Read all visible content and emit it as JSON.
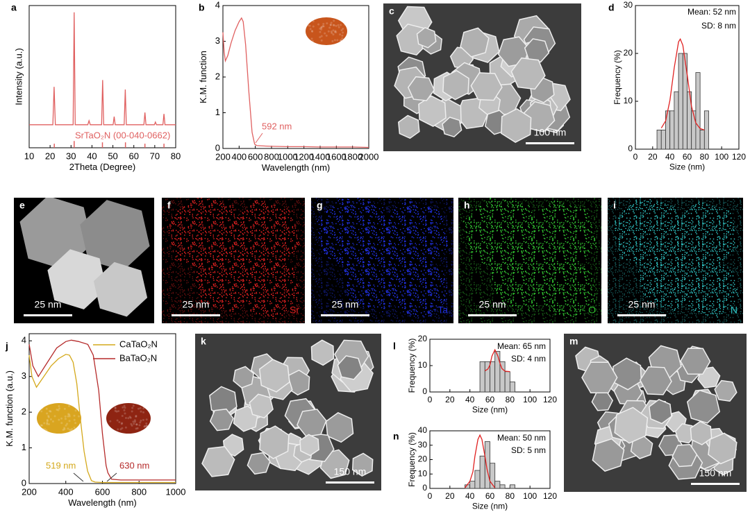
{
  "chart_data": [
    {
      "type": "line",
      "label": "a",
      "xlabel": "2Theta (Degree)",
      "ylabel": "Intensity (a.u.)",
      "xlim": [
        10,
        80
      ],
      "xticks": [
        10,
        20,
        30,
        40,
        50,
        60,
        70,
        80
      ],
      "ylim": [
        0,
        1.05
      ],
      "annotations": [
        "SrTaO₂N (00-040-0662)"
      ],
      "series": [
        {
          "color": "#e06060",
          "x": [
            10,
            21.3,
            21.9,
            22.5,
            31,
            31.5,
            32,
            38,
            38.6,
            39.2,
            44.6,
            45.1,
            45.6,
            50.1,
            50.6,
            51.1,
            55.4,
            55.9,
            56.4,
            64.8,
            65.3,
            65.8,
            69.8,
            70.3,
            70.8,
            73.9,
            74.4,
            74.9,
            80
          ],
          "values": [
            0.17,
            0.17,
            0.45,
            0.17,
            0.17,
            1.0,
            0.17,
            0.17,
            0.2,
            0.17,
            0.17,
            0.5,
            0.17,
            0.17,
            0.23,
            0.17,
            0.17,
            0.43,
            0.17,
            0.17,
            0.26,
            0.17,
            0.17,
            0.19,
            0.17,
            0.17,
            0.25,
            0.17,
            0.17
          ]
        },
        {
          "color": "#e06060",
          "kind": "sticks",
          "x": [
            22,
            31.5,
            45,
            56,
            65.3,
            74.4
          ],
          "values": [
            0.03,
            0.05,
            0.04,
            0.04,
            0.03,
            0.03
          ]
        }
      ]
    },
    {
      "type": "line",
      "label": "b",
      "xlabel": "Wavelength (nm)",
      "ylabel": "K.M. function",
      "xlim": [
        200,
        2000
      ],
      "xticks": [
        200,
        400,
        600,
        800,
        1000,
        1200,
        1400,
        1600,
        1800,
        2000
      ],
      "ylim": [
        0,
        4
      ],
      "yticks": [
        0,
        1,
        2,
        3,
        4
      ],
      "annotations": [
        "592 nm"
      ],
      "series": [
        {
          "color": "#e06060",
          "x": [
            200,
            215,
            230,
            260,
            300,
            350,
            400,
            430,
            450,
            480,
            520,
            560,
            592,
            620,
            700,
            800,
            1000,
            1200,
            1400,
            1600,
            1800,
            2000
          ],
          "values": [
            3.25,
            2.7,
            2.45,
            2.6,
            2.95,
            3.3,
            3.55,
            3.65,
            3.55,
            2.9,
            1.6,
            0.45,
            0.12,
            0.08,
            0.07,
            0.06,
            0.05,
            0.05,
            0.04,
            0.04,
            0.04,
            0.03
          ]
        }
      ]
    },
    {
      "type": "histogram",
      "label": "d",
      "xlabel": "Size (nm)",
      "ylabel": "Frequency (%)",
      "xlim": [
        0,
        120
      ],
      "xticks": [
        0,
        20,
        40,
        60,
        80,
        100,
        120
      ],
      "ylim": [
        0,
        30
      ],
      "yticks": [
        0,
        10,
        20,
        30
      ],
      "annotations": [
        "Mean: 52 nm",
        "SD: 8 nm"
      ],
      "bins": [
        25,
        30,
        35,
        40,
        45,
        50,
        55,
        60,
        65,
        70,
        75,
        80,
        85
      ],
      "values": [
        4,
        4,
        8,
        8,
        12,
        20,
        20,
        12,
        8,
        16,
        4,
        8
      ],
      "color": "#c8c8c8",
      "fit": {
        "color": "#e02020",
        "x": [
          30,
          35,
          40,
          45,
          50,
          52,
          55,
          60,
          65,
          70,
          75,
          80
        ],
        "values": [
          4.4,
          5.9,
          10.2,
          17,
          22.4,
          23,
          21.7,
          15.6,
          9,
          5.5,
          4.3,
          4
        ]
      }
    },
    {
      "type": "line",
      "label": "j",
      "xlabel": "Wavelength (nm)",
      "ylabel": "K.M. function (a.u.)",
      "xlim": [
        200,
        1000
      ],
      "xticks": [
        200,
        400,
        600,
        800,
        1000
      ],
      "ylim": [
        0,
        4.2
      ],
      "yticks": [
        0,
        1,
        2,
        3,
        4
      ],
      "annotations": [
        "519 nm",
        "630 nm"
      ],
      "legend": "top-right",
      "series": [
        {
          "name": "CaTaO₂N",
          "color": "#d4a81a",
          "x": [
            200,
            215,
            240,
            280,
            320,
            360,
            400,
            420,
            440,
            460,
            480,
            500,
            519,
            540,
            560,
            600,
            700,
            800,
            1000
          ],
          "values": [
            3.6,
            3.0,
            2.7,
            3.0,
            3.3,
            3.5,
            3.62,
            3.6,
            3.4,
            2.8,
            1.8,
            0.9,
            0.35,
            0.08,
            0.04,
            0.03,
            0.03,
            0.03,
            0.03
          ]
        },
        {
          "name": "BaTaO₂N",
          "color": "#b52a2a",
          "x": [
            200,
            220,
            250,
            300,
            350,
            400,
            430,
            470,
            520,
            550,
            580,
            600,
            620,
            630,
            650,
            700,
            800,
            1000
          ],
          "values": [
            3.9,
            3.3,
            3.0,
            3.4,
            3.8,
            3.98,
            4.02,
            3.98,
            3.9,
            3.6,
            2.6,
            1.4,
            0.5,
            0.3,
            0.12,
            0.1,
            0.1,
            0.1
          ]
        }
      ]
    },
    {
      "type": "histogram",
      "label": "l",
      "xlabel": "Size (nm)",
      "ylabel": "Frequency (%)",
      "xlim": [
        0,
        120
      ],
      "xticks": [
        0,
        20,
        40,
        60,
        80,
        100,
        120
      ],
      "ylim": [
        0,
        20
      ],
      "yticks": [
        0,
        10,
        20
      ],
      "annotations": [
        "Mean: 65 nm",
        "SD: 4 nm"
      ],
      "bins": [
        50,
        55,
        60,
        65,
        70,
        75,
        80,
        85
      ],
      "values": [
        11.5,
        11.5,
        11.5,
        15.4,
        11.5,
        7.7,
        3.8
      ],
      "color": "#c8c8c8",
      "fit": {
        "color": "#e02020",
        "x": [
          55,
          58,
          60,
          62,
          65,
          68,
          70,
          72,
          75,
          80
        ],
        "values": [
          8,
          8.7,
          10.2,
          13.6,
          16,
          13.6,
          10.9,
          8.9,
          7.9,
          7.7
        ]
      }
    },
    {
      "type": "histogram",
      "label": "n",
      "xlabel": "Size (nm)",
      "ylabel": "Frequency (%)",
      "xlim": [
        0,
        120
      ],
      "xticks": [
        0,
        20,
        40,
        60,
        80,
        100,
        120
      ],
      "ylim": [
        0,
        40
      ],
      "yticks": [
        0,
        10,
        20,
        30,
        40
      ],
      "annotations": [
        "Mean: 50 nm",
        "SD: 5 nm"
      ],
      "bins": [
        35,
        40,
        45,
        50,
        55,
        60,
        65,
        70,
        75,
        80,
        85
      ],
      "values": [
        2.5,
        5,
        12.5,
        22.5,
        32.5,
        17.5,
        5,
        2.5,
        0,
        2.5
      ],
      "color": "#c8c8c8",
      "fit": {
        "color": "#e02020",
        "x": [
          35,
          40,
          43,
          45,
          48,
          50,
          52,
          55,
          57,
          60,
          65
        ],
        "values": [
          0.4,
          5,
          11.6,
          22.4,
          34,
          37,
          34,
          22.4,
          13.6,
          5,
          0.4
        ]
      }
    }
  ],
  "images": [
    {
      "label": "c",
      "kind": "sem",
      "scale": "100 nm"
    },
    {
      "label": "e",
      "kind": "haadf",
      "scale": "25 nm"
    },
    {
      "label": "f",
      "kind": "map",
      "scale": "25 nm",
      "element": "Sr",
      "color": "#e02020"
    },
    {
      "label": "g",
      "kind": "map",
      "scale": "25 nm",
      "element": "Ta",
      "color": "#2030e0"
    },
    {
      "label": "h",
      "kind": "map",
      "scale": "25 nm",
      "element": "O",
      "color": "#30c030"
    },
    {
      "label": "i",
      "kind": "map",
      "scale": "25 nm",
      "element": "N",
      "color": "#30c8c8"
    },
    {
      "label": "k",
      "kind": "sem",
      "scale": "150 nm"
    },
    {
      "label": "m",
      "kind": "sem",
      "scale": "150 nm"
    }
  ]
}
